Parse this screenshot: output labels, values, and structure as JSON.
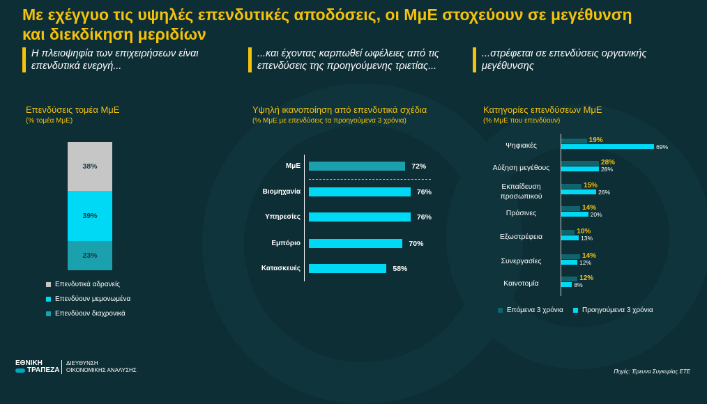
{
  "title": "Με εχέγγυο τις υψηλές επενδυτικές αποδόσεις, οι ΜμΕ στοχεύουν σε μεγέθυνση και διεκδίκηση μεριδίων",
  "quotes": [
    "Η πλειοψηφία των επιχειρήσεων είναι επενδυτικά ενεργή...",
    "...και έχοντας καρπωθεί ωφέλειες από τις επενδύσεις της προηγούμενης τριετίας...",
    "...στρέφεται σε επενδύσεις οργανικής μεγέθυνσης"
  ],
  "colors": {
    "accent": "#f4c20d",
    "inactive": "#c6c6c6",
    "cyan": "#00d9f5",
    "teal": "#1ba0ad",
    "dark_teal": "#11636c"
  },
  "chart_data": [
    {
      "type": "bar",
      "stacked": true,
      "title": "Επενδύσεις τομέα ΜμΕ",
      "subtitle": "(% τομέα ΜμΕ)",
      "series": [
        {
          "name": "Επενδυτικά αδρανείς",
          "value": 38,
          "label": "38%"
        },
        {
          "name": "Επενδύουν μεμονωμένα",
          "value": 39,
          "label": "39%"
        },
        {
          "name": "Επενδύουν διαχρονικά",
          "value": 23,
          "label": "23%"
        }
      ]
    },
    {
      "type": "bar",
      "orientation": "horizontal",
      "title": "Υψηλή ικανοποίηση από επενδυτικά σχέδια",
      "subtitle": "(% ΜμΕ με επενδύσεις τα προηγούμενα 3 χρόνια)",
      "categories": [
        "ΜμΕ",
        "Βιομηχανία",
        "Υπηρεσίες",
        "Εμπόριο",
        "Κατασκευές"
      ],
      "values": [
        72,
        76,
        76,
        70,
        58
      ],
      "labels": [
        "72%",
        "76%",
        "76%",
        "70%",
        "58%"
      ]
    },
    {
      "type": "bar",
      "orientation": "horizontal",
      "title": "Κατηγορίες επενδύσεων ΜμΕ",
      "subtitle": "(% ΜμΕ που επενδύουν)",
      "categories": [
        "Ψηφιακές",
        "Αύξηση μεγέθους",
        "Εκπαίδευση προσωπικού",
        "Πράσινες",
        "Εξωστρέφεια",
        "Συνεργασίες",
        "Καινοτομία"
      ],
      "series": [
        {
          "name": "Επόμενα 3 χρόνια",
          "values": [
            19,
            28,
            15,
            14,
            10,
            14,
            12
          ],
          "labels": [
            "19%",
            "28%",
            "15%",
            "14%",
            "10%",
            "14%",
            "12%"
          ]
        },
        {
          "name": "Προηγούμενα 3 χρόνια",
          "values": [
            69,
            28,
            26,
            20,
            13,
            12,
            8
          ],
          "labels": [
            "69%",
            "28%",
            "26%",
            "20%",
            "13%",
            "12%",
            "8%"
          ]
        }
      ]
    }
  ],
  "footer": {
    "logo_line1": "ΕΘΝΙΚΗ",
    "logo_line2": "ΤΡΑΠΕΖΑ",
    "dept_line1": "ΔΙΕΥΘΥΝΣΗ",
    "dept_line2": "ΟΙΚΟΝΟΜΙΚΗΣ ΑΝΑΛΥΣΗΣ",
    "source": "Πηγές: Έρευνα Συγκυρίας ΕΤΕ"
  }
}
